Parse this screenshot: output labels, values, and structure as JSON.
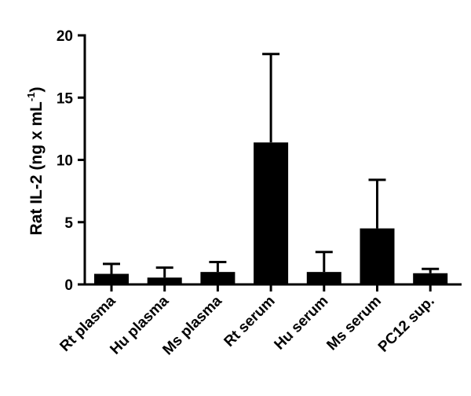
{
  "chart_data": {
    "type": "bar",
    "title": "",
    "xlabel": "",
    "ylabel": {
      "prefix": "Rat IL-2 (ng x mL",
      "superscript": "-1",
      "suffix": ")"
    },
    "ylim": [
      0,
      20
    ],
    "yticks": [
      0,
      5,
      10,
      15,
      20
    ],
    "yticks_labels": [
      "0",
      "5",
      "10",
      "15",
      "20"
    ],
    "categories": [
      "Rt plasma",
      "Hu plasma",
      "Ms plasma",
      "Rt serum",
      "Hu serum",
      "Ms serum",
      "PC12 sup."
    ],
    "values": [
      0.85,
      0.55,
      1.0,
      11.4,
      1.0,
      4.5,
      0.9
    ],
    "error_upper": [
      0.8,
      0.8,
      0.8,
      7.1,
      1.6,
      3.9,
      0.35
    ],
    "bar_color": "#000000",
    "grid": false,
    "legend": "none"
  }
}
